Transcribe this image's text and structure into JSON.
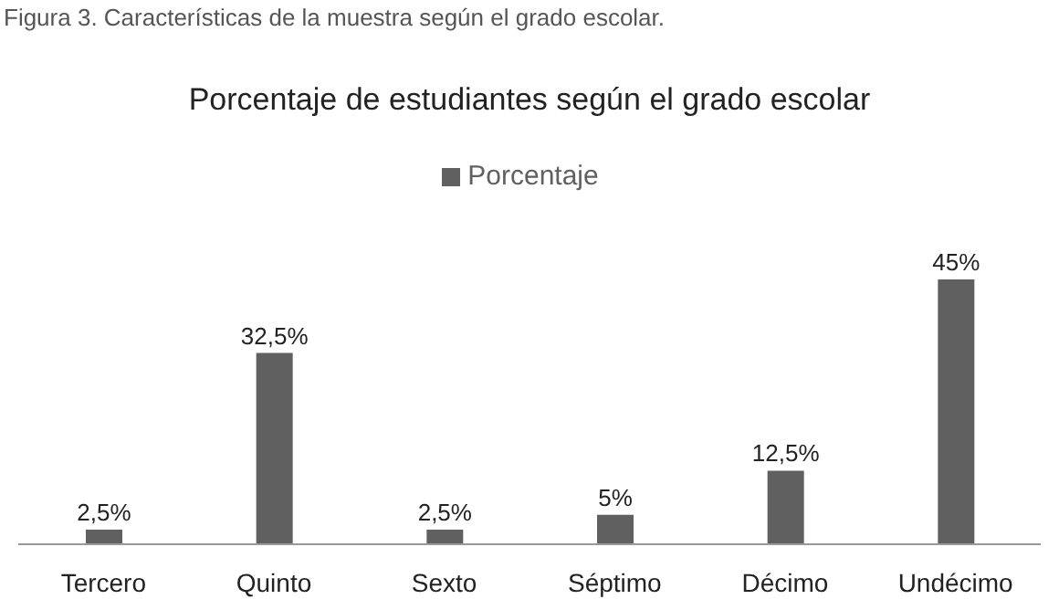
{
  "chart_data": {
    "type": "bar",
    "title": "Porcentaje de estudiantes según el grado escolar",
    "annotations": [
      "Figura 3. Características de la muestra según el grado escolar."
    ],
    "categories": [
      "Tercero",
      "Quinto",
      "Sexto",
      "Séptimo",
      "Décimo",
      "Undécimo"
    ],
    "series": [
      {
        "name": "Porcentaje",
        "color": "#606060",
        "values": [
          2.5,
          32.5,
          2.5,
          5,
          12.5,
          45
        ],
        "value_labels": [
          "2,5%",
          "32,5%",
          "2,5%",
          "5%",
          "12,5%",
          "45%"
        ]
      }
    ],
    "tick_labels": "x",
    "legend": "top"
  }
}
